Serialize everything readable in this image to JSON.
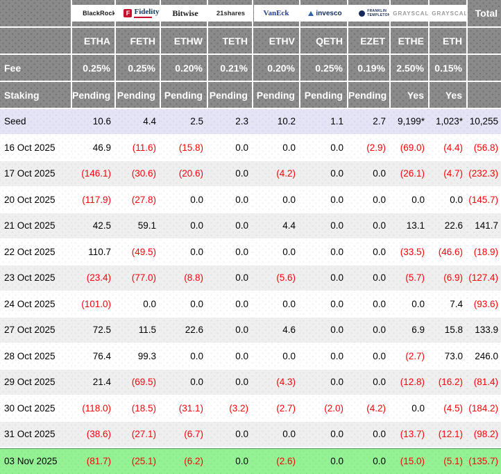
{
  "chart_data": {
    "type": "table",
    "labels": {
      "fee": "Fee",
      "staking": "Staking",
      "total": "Total"
    },
    "funds": [
      {
        "name": "BlackRock",
        "ticker": "ETHA",
        "fee": "0.25%",
        "staking": "Pending",
        "logo_style": "blackrock"
      },
      {
        "name": "Fidelity",
        "ticker": "FETH",
        "fee": "0.25%",
        "staking": "Pending",
        "logo_style": "fidelity"
      },
      {
        "name": "Bitwise",
        "ticker": "ETHW",
        "fee": "0.20%",
        "staking": "Pending",
        "logo_style": "bitwise"
      },
      {
        "name": "21shares",
        "ticker": "TETH",
        "fee": "0.21%",
        "staking": "Pending",
        "logo_style": "shares21"
      },
      {
        "name": "VanEck",
        "ticker": "ETHV",
        "fee": "0.20%",
        "staking": "Pending",
        "logo_style": "vaneck"
      },
      {
        "name": "invesco",
        "ticker": "QETH",
        "fee": "0.25%",
        "staking": "Pending",
        "logo_style": "invesco"
      },
      {
        "name": "FRANKLIN TEMPLETON",
        "ticker": "EZET",
        "fee": "0.19%",
        "staking": "Pending",
        "logo_style": "franklin"
      },
      {
        "name": "GRAYSCALE",
        "ticker": "ETHE",
        "fee": "2.50%",
        "staking": "Yes",
        "logo_style": "grayscale"
      },
      {
        "name": "GRAYSCALE",
        "ticker": "ETH",
        "fee": "0.15%",
        "staking": "Yes",
        "logo_style": "grayscale"
      }
    ],
    "rows": [
      {
        "label": "Seed",
        "type": "seed",
        "values": [
          "10.6",
          "4.4",
          "2.5",
          "2.3",
          "10.2",
          "1.1",
          "2.7",
          "9,199*",
          "1,023*",
          "10,255"
        ]
      },
      {
        "label": "16 Oct 2025",
        "type": "date",
        "values": [
          "46.9",
          "(11.6)",
          "(15.8)",
          "0.0",
          "0.0",
          "0.0",
          "(2.9)",
          "(69.0)",
          "(4.4)",
          "(56.8)"
        ]
      },
      {
        "label": "17 Oct 2025",
        "type": "date",
        "values": [
          "(146.1)",
          "(30.6)",
          "(20.6)",
          "0.0",
          "(4.2)",
          "0.0",
          "0.0",
          "(26.1)",
          "(4.7)",
          "(232.3)"
        ]
      },
      {
        "label": "20 Oct 2025",
        "type": "date",
        "values": [
          "(117.9)",
          "(27.8)",
          "0.0",
          "0.0",
          "0.0",
          "0.0",
          "0.0",
          "0.0",
          "0.0",
          "(145.7)"
        ]
      },
      {
        "label": "21 Oct 2025",
        "type": "date",
        "values": [
          "42.5",
          "59.1",
          "0.0",
          "0.0",
          "4.4",
          "0.0",
          "0.0",
          "13.1",
          "22.6",
          "141.7"
        ]
      },
      {
        "label": "22 Oct 2025",
        "type": "date",
        "values": [
          "110.7",
          "(49.5)",
          "0.0",
          "0.0",
          "0.0",
          "0.0",
          "0.0",
          "(33.5)",
          "(46.6)",
          "(18.9)"
        ]
      },
      {
        "label": "23 Oct 2025",
        "type": "date",
        "values": [
          "(23.4)",
          "(77.0)",
          "(8.8)",
          "0.0",
          "(5.6)",
          "0.0",
          "0.0",
          "(5.7)",
          "(6.9)",
          "(127.4)"
        ]
      },
      {
        "label": "24 Oct 2025",
        "type": "date",
        "values": [
          "(101.0)",
          "0.0",
          "0.0",
          "0.0",
          "0.0",
          "0.0",
          "0.0",
          "0.0",
          "7.4",
          "(93.6)"
        ]
      },
      {
        "label": "27 Oct 2025",
        "type": "date",
        "values": [
          "72.5",
          "11.5",
          "22.6",
          "0.0",
          "4.6",
          "0.0",
          "0.0",
          "6.9",
          "15.8",
          "133.9"
        ]
      },
      {
        "label": "28 Oct 2025",
        "type": "date",
        "values": [
          "76.4",
          "99.3",
          "0.0",
          "0.0",
          "0.0",
          "0.0",
          "0.0",
          "(2.7)",
          "73.0",
          "246.0"
        ]
      },
      {
        "label": "29 Oct 2025",
        "type": "date",
        "values": [
          "21.4",
          "(69.5)",
          "0.0",
          "0.0",
          "(4.3)",
          "0.0",
          "0.0",
          "(12.8)",
          "(16.2)",
          "(81.4)"
        ]
      },
      {
        "label": "30 Oct 2025",
        "type": "date",
        "values": [
          "(118.0)",
          "(18.5)",
          "(31.1)",
          "(3.2)",
          "(2.7)",
          "(2.0)",
          "(4.2)",
          "0.0",
          "(4.5)",
          "(184.2)"
        ]
      },
      {
        "label": "31 Oct 2025",
        "type": "date",
        "values": [
          "(38.6)",
          "(27.1)",
          "(6.7)",
          "0.0",
          "0.0",
          "0.0",
          "0.0",
          "(13.7)",
          "(12.1)",
          "(98.2)"
        ]
      },
      {
        "label": "03 Nov 2025",
        "type": "latest",
        "values": [
          "(81.7)",
          "(25.1)",
          "(6.2)",
          "0.0",
          "(2.6)",
          "0.0",
          "0.0",
          "(15.0)",
          "(5.1)",
          "(135.7)"
        ]
      }
    ],
    "colors": {
      "header_bg": "#8a8a8a",
      "seed_row_bg": "#e4e4f6",
      "alt_row_bg": "#efefef",
      "white_row_bg": "#ffffff",
      "latest_row_bg": "#94f294",
      "negative_text": "#fb0007",
      "positive_text": "#000000",
      "header_text": "#ffffff"
    }
  }
}
